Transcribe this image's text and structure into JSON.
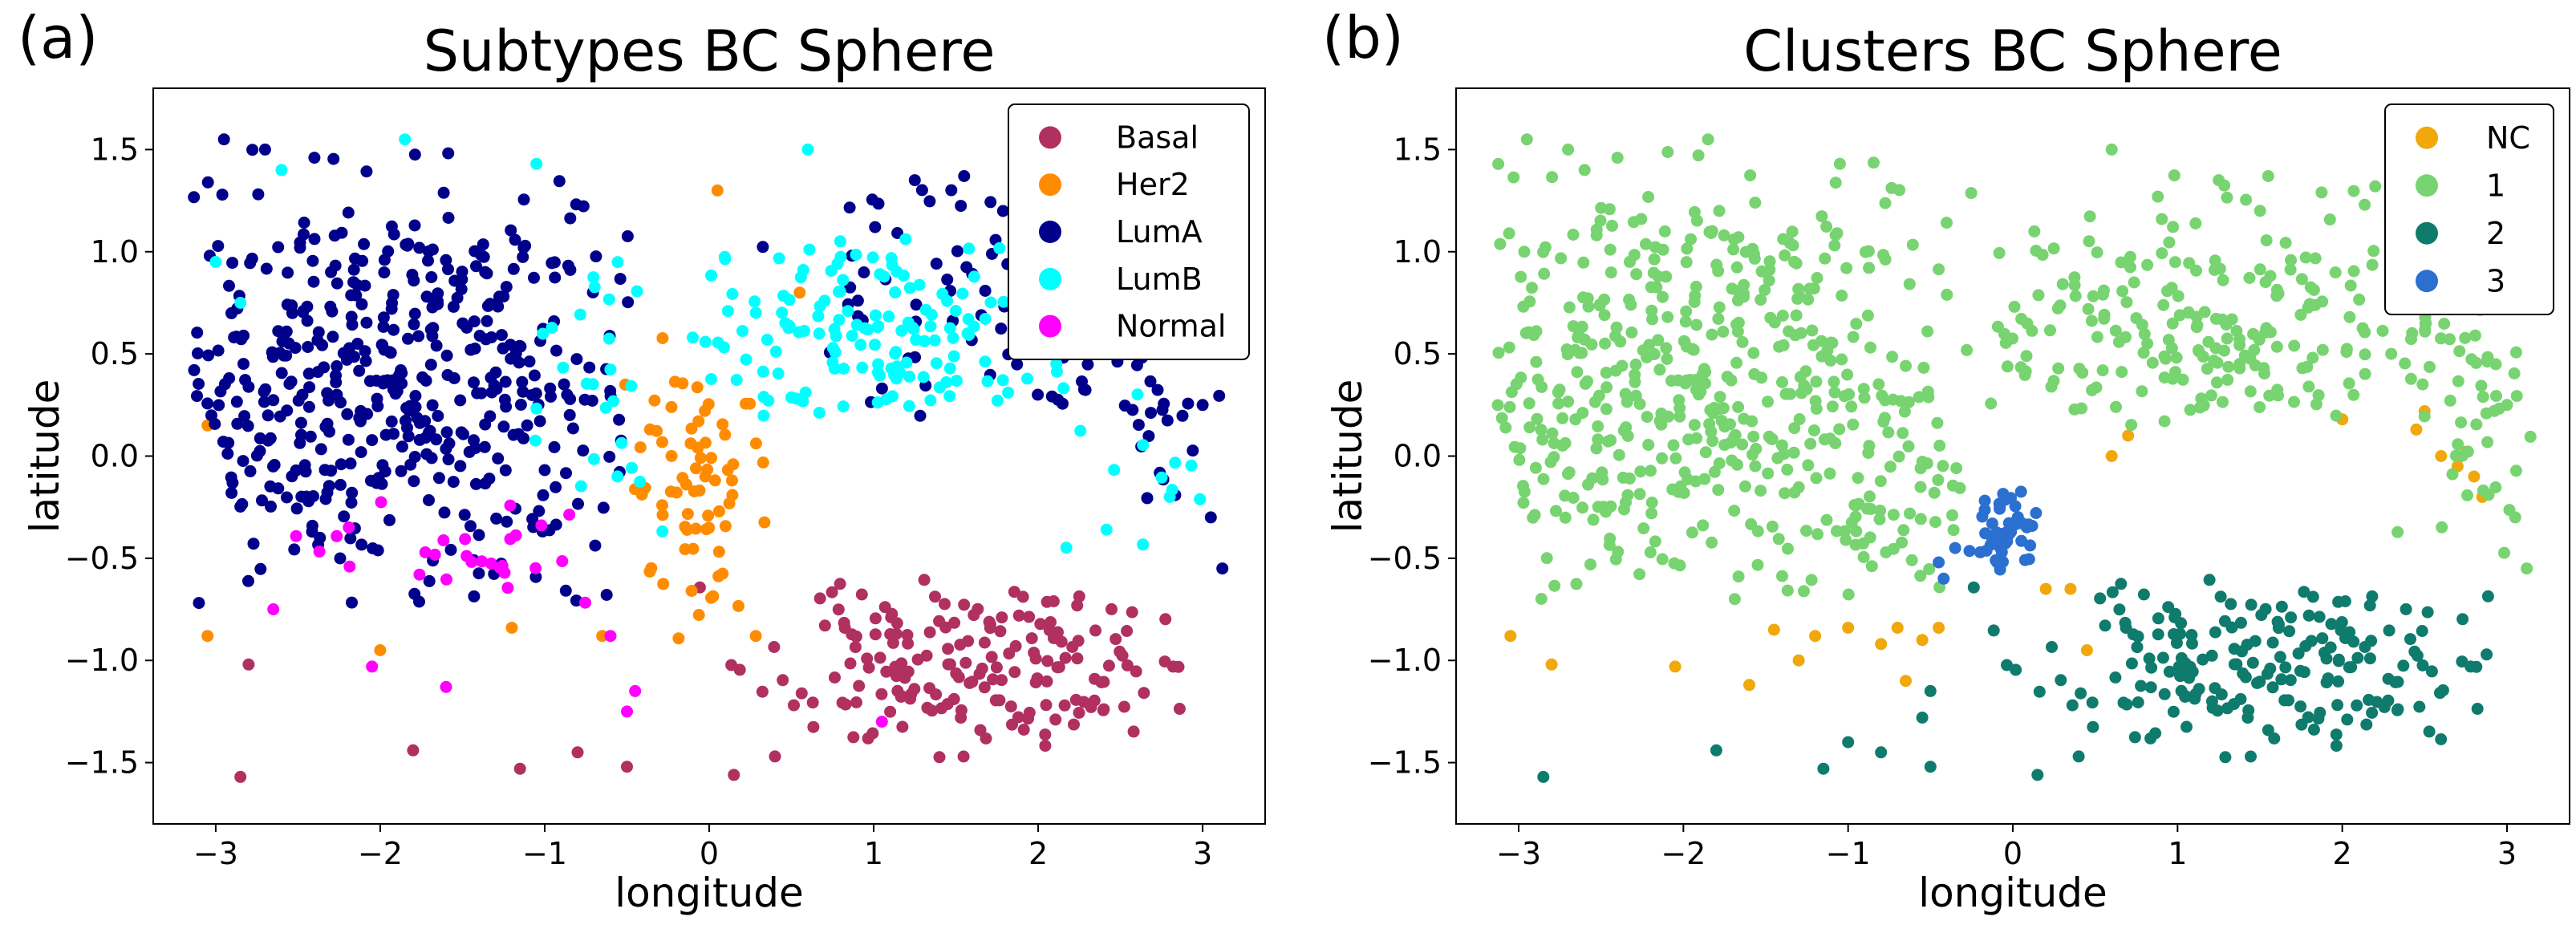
{
  "chart_data": [
    {
      "type": "scatter",
      "panel_label": "(a)",
      "title": "Subtypes BC Sphere",
      "xlabel": "longitude",
      "ylabel": "latitude",
      "xlim": [
        -3.38,
        3.38
      ],
      "ylim": [
        -1.8,
        1.8
      ],
      "xticks": [
        -3,
        -2,
        -1,
        0,
        1,
        2,
        3
      ],
      "xtick_labels": [
        "−3",
        "−2",
        "−1",
        "0",
        "1",
        "2",
        "3"
      ],
      "yticks": [
        -1.5,
        -1.0,
        -0.5,
        0.0,
        0.5,
        1.0,
        1.5
      ],
      "ytick_labels": [
        "−1.5",
        "−1.0",
        "−0.5",
        "0.0",
        "0.5",
        "1.0",
        "1.5"
      ],
      "legend_position": "top-right",
      "series": [
        {
          "name": "Basal",
          "color": "#b03060",
          "seed": 11,
          "points": [
            [
              -2.85,
              -1.57
            ],
            [
              -2.8,
              -1.02
            ],
            [
              -1.8,
              -1.44
            ],
            [
              -1.15,
              -1.53
            ],
            [
              -0.8,
              -1.45
            ],
            [
              -0.5,
              -1.52
            ],
            [
              0.15,
              -1.56
            ],
            [
              0.4,
              -1.47
            ]
          ],
          "blobs": [
            {
              "cx": 1.6,
              "cy": -1.02,
              "sx": 0.62,
              "sy": 0.22,
              "n": 180,
              "xmin": -0.3,
              "xmax": 2.9,
              "ymin": -1.5,
              "ymax": -0.6
            }
          ]
        },
        {
          "name": "Her2",
          "color": "#ff8c00",
          "seed": 23,
          "points": [
            [
              -3.05,
              -0.88
            ],
            [
              -3.05,
              0.15
            ],
            [
              -2.0,
              -0.95
            ],
            [
              -1.2,
              -0.84
            ],
            [
              0.05,
              1.3
            ],
            [
              0.55,
              0.8
            ],
            [
              -0.65,
              -0.88
            ]
          ],
          "blobs": [
            {
              "cx": -0.1,
              "cy": -0.2,
              "sx": 0.22,
              "sy": 0.38,
              "n": 72,
              "xmin": -0.65,
              "xmax": 0.35,
              "ymin": -0.9,
              "ymax": 0.8
            }
          ]
        },
        {
          "name": "LumA",
          "color": "#00008b",
          "seed": 37,
          "points": [
            [
              -2.95,
              1.55
            ],
            [
              -2.7,
              1.5
            ],
            [
              -2.4,
              1.46
            ],
            [
              1.25,
              1.35
            ],
            [
              1.55,
              1.37
            ],
            [
              2.2,
              1.32
            ],
            [
              2.55,
              1.05
            ],
            [
              3.0,
              0.25
            ],
            [
              3.05,
              -0.3
            ],
            [
              3.12,
              -0.55
            ]
          ],
          "blobs": [
            {
              "cx": -1.9,
              "cy": 0.35,
              "sx": 0.75,
              "sy": 0.55,
              "n": 470,
              "xmin": -3.15,
              "xmax": -0.4,
              "ymin": -0.72,
              "ymax": 1.5
            },
            {
              "cx": 1.8,
              "cy": 0.9,
              "sx": 0.8,
              "sy": 0.35,
              "n": 95,
              "xmin": 0.2,
              "xmax": 3.1,
              "ymin": 0.0,
              "ymax": 1.4
            },
            {
              "cx": 2.6,
              "cy": 0.35,
              "sx": 0.3,
              "sy": 0.25,
              "n": 35,
              "xmin": 2.0,
              "xmax": 3.15,
              "ymin": -0.3,
              "ymax": 0.8
            }
          ]
        },
        {
          "name": "LumB",
          "color": "#00ffff",
          "seed": 53,
          "points": [
            [
              -2.6,
              1.4
            ],
            [
              -1.85,
              1.55
            ],
            [
              -1.05,
              1.43
            ],
            [
              0.6,
              1.5
            ],
            [
              -3.0,
              0.95
            ],
            [
              -2.85,
              0.75
            ],
            [
              2.8,
              -0.2
            ]
          ],
          "blobs": [
            {
              "cx": 0.9,
              "cy": 0.55,
              "sx": 0.6,
              "sy": 0.28,
              "n": 150,
              "xmin": -0.2,
              "xmax": 2.3,
              "ymin": 0.18,
              "ymax": 1.15
            },
            {
              "cx": 2.6,
              "cy": 0.1,
              "sx": 0.3,
              "sy": 0.4,
              "n": 18,
              "xmin": 2.1,
              "xmax": 3.1,
              "ymin": -0.45,
              "ymax": 0.8
            },
            {
              "cx": -0.7,
              "cy": 0.4,
              "sx": 0.25,
              "sy": 0.5,
              "n": 25,
              "xmin": -1.2,
              "xmax": -0.2,
              "ymin": -0.5,
              "ymax": 1.2
            }
          ]
        },
        {
          "name": "Normal",
          "color": "#ff00ff",
          "seed": 71,
          "points": [
            [
              -2.65,
              -0.75
            ],
            [
              -2.05,
              -1.03
            ],
            [
              -1.6,
              -1.13
            ],
            [
              -0.5,
              -1.25
            ],
            [
              -0.45,
              -1.15
            ],
            [
              1.05,
              -1.3
            ],
            [
              -0.6,
              -0.88
            ]
          ],
          "blobs": [
            {
              "cx": -1.6,
              "cy": -0.45,
              "sx": 0.55,
              "sy": 0.15,
              "n": 28,
              "xmin": -2.7,
              "xmax": -0.5,
              "ymin": -0.9,
              "ymax": -0.05
            }
          ]
        }
      ]
    },
    {
      "type": "scatter",
      "panel_label": "(b)",
      "title": "Clusters BC Sphere",
      "xlabel": "longitude",
      "ylabel": "latitude",
      "xlim": [
        -3.38,
        3.38
      ],
      "ylim": [
        -1.8,
        1.8
      ],
      "xticks": [
        -3,
        -2,
        -1,
        0,
        1,
        2,
        3
      ],
      "xtick_labels": [
        "−3",
        "−2",
        "−1",
        "0",
        "1",
        "2",
        "3"
      ],
      "yticks": [
        -1.5,
        -1.0,
        -0.5,
        0.0,
        0.5,
        1.0,
        1.5
      ],
      "ytick_labels": [
        "−1.5",
        "−1.0",
        "−0.5",
        "0.0",
        "0.5",
        "1.0",
        "1.5"
      ],
      "legend_position": "top-right",
      "series": [
        {
          "name": "NC",
          "color": "#f0a80a",
          "seed": 101,
          "points": [
            [
              -3.05,
              -0.88
            ],
            [
              -2.8,
              -1.02
            ],
            [
              -2.05,
              -1.03
            ],
            [
              -1.6,
              -1.12
            ],
            [
              -1.45,
              -0.85
            ],
            [
              -1.3,
              -1.0
            ],
            [
              -1.2,
              -0.88
            ],
            [
              -1.0,
              -0.84
            ],
            [
              -0.8,
              -0.92
            ],
            [
              -0.7,
              -0.84
            ],
            [
              -0.65,
              -1.1
            ],
            [
              -0.55,
              -0.9
            ],
            [
              -0.45,
              -0.84
            ],
            [
              0.2,
              -0.65
            ],
            [
              0.35,
              -0.65
            ],
            [
              0.6,
              0.0
            ],
            [
              0.7,
              0.1
            ],
            [
              2.0,
              0.18
            ],
            [
              2.45,
              0.13
            ],
            [
              2.5,
              0.22
            ],
            [
              2.6,
              0.0
            ],
            [
              2.7,
              -0.05
            ],
            [
              2.75,
              0.02
            ],
            [
              2.8,
              -0.1
            ],
            [
              2.85,
              -0.2
            ],
            [
              0.45,
              -0.95
            ]
          ],
          "blobs": []
        },
        {
          "name": "1",
          "color": "#77d470",
          "seed": 37,
          "points": [
            [
              -2.95,
              1.55
            ],
            [
              -2.7,
              1.5
            ],
            [
              -2.4,
              1.46
            ],
            [
              -2.6,
              1.4
            ],
            [
              -1.85,
              1.55
            ],
            [
              -1.05,
              1.43
            ],
            [
              0.6,
              1.5
            ],
            [
              1.25,
              1.35
            ],
            [
              1.55,
              1.37
            ],
            [
              2.2,
              1.32
            ],
            [
              3.0,
              0.25
            ],
            [
              3.05,
              -0.3
            ],
            [
              3.12,
              -0.55
            ]
          ],
          "blobs": [
            {
              "cx": -1.9,
              "cy": 0.35,
              "sx": 0.8,
              "sy": 0.6,
              "n": 480,
              "xmin": -3.15,
              "xmax": -0.3,
              "ymin": -0.72,
              "ymax": 1.5
            },
            {
              "cx": 1.0,
              "cy": 0.65,
              "sx": 0.85,
              "sy": 0.35,
              "n": 230,
              "xmin": -0.3,
              "xmax": 3.1,
              "ymin": 0.15,
              "ymax": 1.4
            },
            {
              "cx": 2.75,
              "cy": 0.25,
              "sx": 0.22,
              "sy": 0.35,
              "n": 40,
              "xmin": 2.3,
              "xmax": 3.15,
              "ymin": -0.5,
              "ymax": 0.9
            },
            {
              "cx": -0.5,
              "cy": -0.2,
              "sx": 0.3,
              "sy": 0.25,
              "n": 35,
              "xmin": -1.0,
              "xmax": -0.3,
              "ymin": -0.65,
              "ymax": 0.3
            }
          ]
        },
        {
          "name": "2",
          "color": "#0f7b6c",
          "seed": 11,
          "points": [
            [
              -2.85,
              -1.57
            ],
            [
              -1.8,
              -1.44
            ],
            [
              -1.15,
              -1.53
            ],
            [
              -0.8,
              -1.45
            ],
            [
              -0.5,
              -1.52
            ],
            [
              0.15,
              -1.56
            ],
            [
              0.4,
              -1.47
            ],
            [
              -1.0,
              -1.4
            ],
            [
              -0.55,
              -1.28
            ],
            [
              -0.5,
              -1.15
            ]
          ],
          "blobs": [
            {
              "cx": 1.5,
              "cy": -1.02,
              "sx": 0.65,
              "sy": 0.22,
              "n": 195,
              "xmin": -0.25,
              "xmax": 2.9,
              "ymin": -1.5,
              "ymax": -0.6
            }
          ]
        },
        {
          "name": "3",
          "color": "#2b6fd0",
          "seed": 211,
          "points": [
            [
              -0.45,
              -0.52
            ],
            [
              -0.42,
              -0.6
            ],
            [
              -0.35,
              -0.45
            ]
          ],
          "blobs": [
            {
              "cx": -0.05,
              "cy": -0.35,
              "sx": 0.12,
              "sy": 0.11,
              "n": 50,
              "xmin": -0.35,
              "xmax": 0.3,
              "ymin": -0.58,
              "ymax": -0.15
            }
          ]
        }
      ]
    }
  ]
}
